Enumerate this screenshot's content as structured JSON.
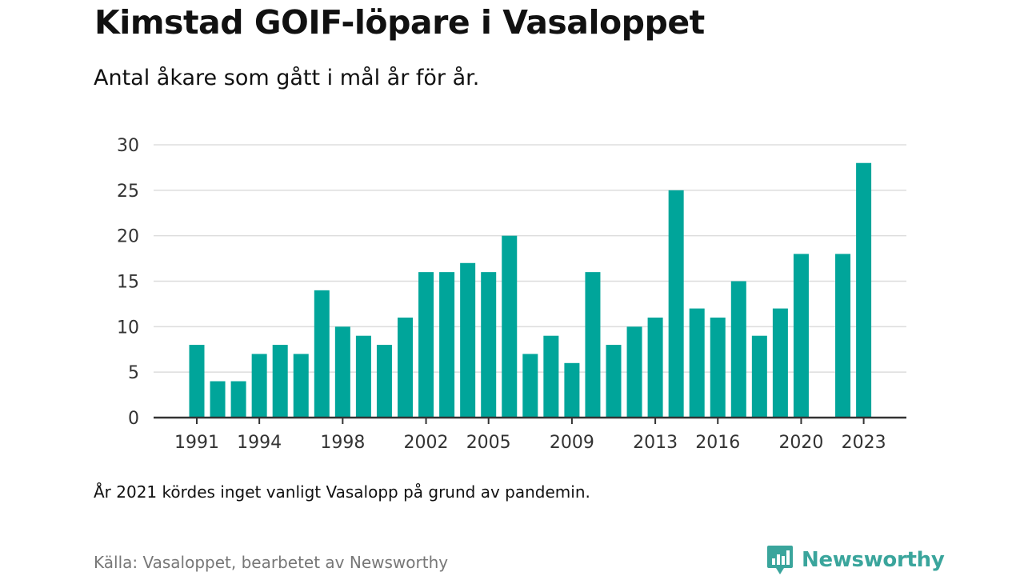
{
  "header": {
    "title": "Kimstad GOIF-löpare i Vasaloppet",
    "subtitle": "Antal åkare som gått i mål år för år."
  },
  "footer": {
    "note": "År 2021 kördes inget vanligt Vasalopp på grund av pandemin.",
    "source": "Källa: Vasaloppet, bearbetet av Newsworthy",
    "brand": "Newsworthy"
  },
  "colors": {
    "bar": "#00a59a",
    "grid": "#dddddd",
    "axis": "#333333",
    "brand": "#3aa59c"
  },
  "chart_data": {
    "type": "bar",
    "categories": [
      1991,
      1992,
      1993,
      1994,
      1995,
      1996,
      1997,
      1998,
      1999,
      2000,
      2001,
      2002,
      2003,
      2004,
      2005,
      2006,
      2007,
      2008,
      2009,
      2010,
      2011,
      2012,
      2013,
      2014,
      2015,
      2016,
      2017,
      2018,
      2019,
      2020,
      2021,
      2022,
      2023
    ],
    "values": [
      8,
      4,
      4,
      7,
      8,
      7,
      14,
      10,
      9,
      8,
      11,
      16,
      16,
      17,
      16,
      20,
      7,
      9,
      6,
      16,
      8,
      10,
      11,
      25,
      12,
      11,
      15,
      9,
      12,
      18,
      null,
      18,
      28
    ],
    "xtick_labels": [
      "1991",
      "1994",
      "1998",
      "2002",
      "2005",
      "2009",
      "2013",
      "2016",
      "2020",
      "2023"
    ],
    "yticks": [
      0,
      5,
      10,
      15,
      20,
      25,
      30
    ],
    "ylim": [
      0,
      30
    ],
    "grid": true,
    "legend": "none"
  }
}
